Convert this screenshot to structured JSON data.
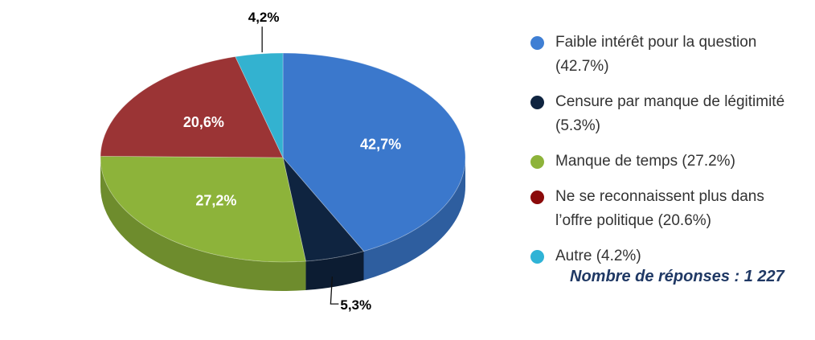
{
  "chart_data": {
    "type": "pie",
    "style": "3d",
    "slices": [
      {
        "label": "42,7%",
        "legend": "Faible intérêt pour la question (42.7%)",
        "value": 42.7,
        "color": "#3b78cc"
      },
      {
        "label": "5,3%",
        "legend": "Censure par manque de légitimité (5.3%)",
        "value": 5.3,
        "color": "#0f2440"
      },
      {
        "label": "27,2%",
        "legend": "Manque de temps (27.2%)",
        "value": 27.2,
        "color": "#8db33a"
      },
      {
        "label": "20,6%",
        "legend": "Ne se reconnaissent plus dans l’offre politique (20.6%)",
        "value": 20.6,
        "color": "#9b3435"
      },
      {
        "label": "4,2%",
        "legend": "Autre (4.2%)",
        "value": 4.2,
        "color": "#33b2d0"
      }
    ],
    "legend_position": "right"
  },
  "legend_swatch_colors": [
    "#3f7fd4",
    "#0f2440",
    "#8db33a",
    "#8b0a0a",
    "#2fb3d6"
  ],
  "footnote": "Nombre de réponses : 1 227"
}
